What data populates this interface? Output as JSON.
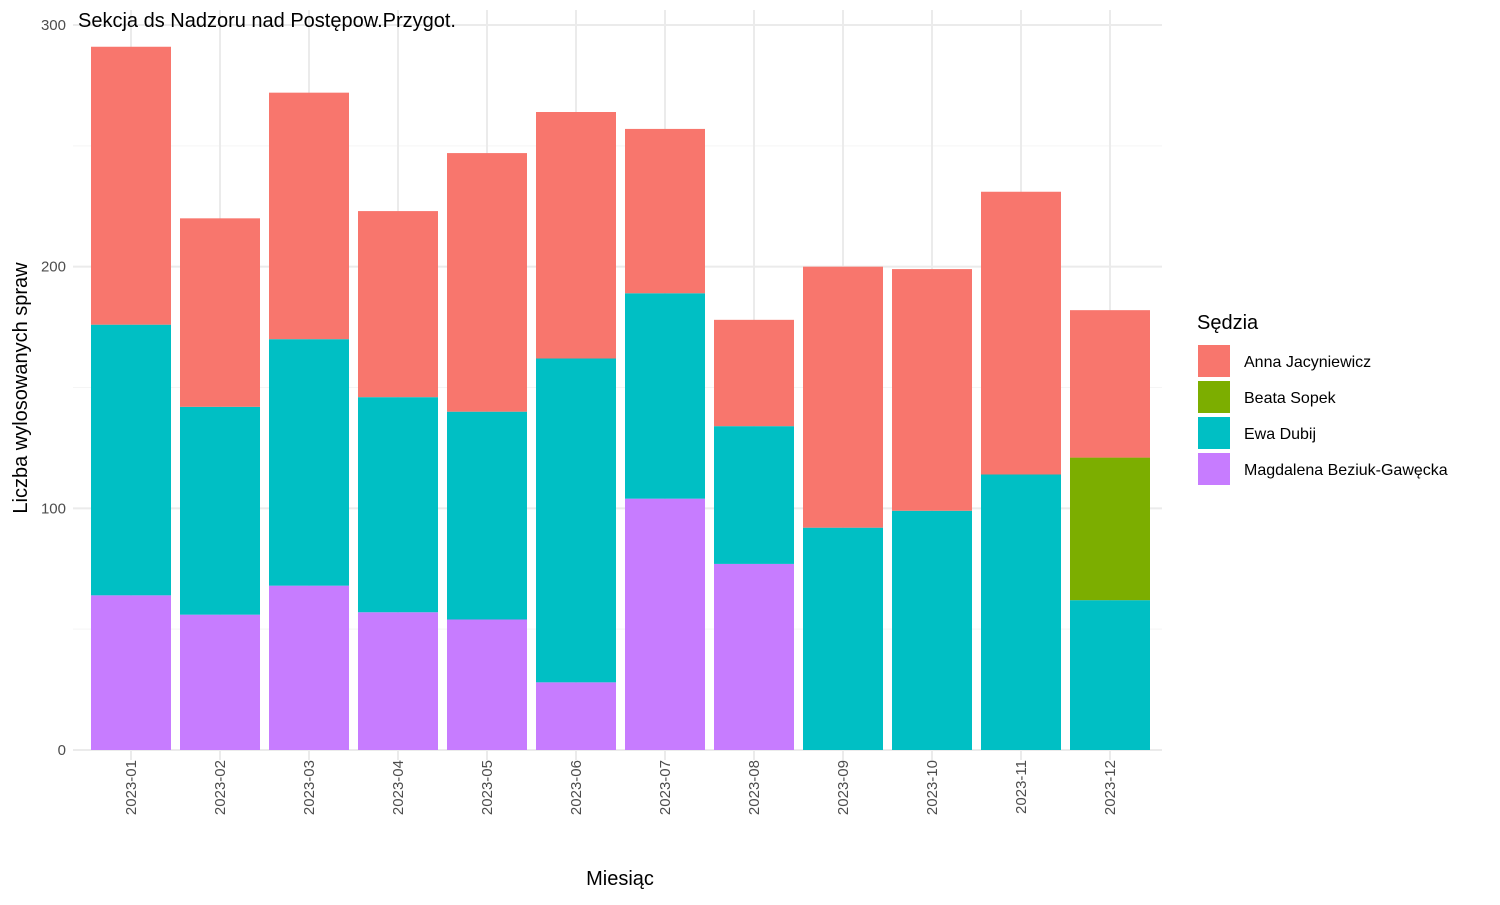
{
  "chart_data": {
    "type": "bar",
    "stacked": true,
    "title": "Sekcja ds Nadzoru nad Postępow.Przygot.",
    "xlabel": "Miesiąc",
    "ylabel": "Liczba wylosowanych spraw",
    "ylim": [
      0,
      300
    ],
    "yticks": [
      0,
      100,
      200,
      300
    ],
    "grid": true,
    "legend_position": "right",
    "legend_title": "Sędzia",
    "categories": [
      "2023-01",
      "2023-02",
      "2023-03",
      "2023-04",
      "2023-05",
      "2023-06",
      "2023-07",
      "2023-08",
      "2023-09",
      "2023-10",
      "2023-11",
      "2023-12"
    ],
    "stack_order_bottom_to_top": [
      "Magdalena Beziuk-Gawęcka",
      "Ewa Dubij",
      "Beata Sopek",
      "Anna Jacyniewicz"
    ],
    "series": [
      {
        "name": "Anna Jacyniewicz",
        "color": "#F8766D",
        "values": [
          115,
          78,
          102,
          77,
          107,
          102,
          68,
          44,
          108,
          100,
          117,
          61
        ]
      },
      {
        "name": "Beata Sopek",
        "color": "#7CAE00",
        "values": [
          0,
          0,
          0,
          0,
          0,
          0,
          0,
          0,
          0,
          0,
          0,
          59
        ]
      },
      {
        "name": "Ewa Dubij",
        "color": "#00BFC4",
        "values": [
          112,
          86,
          102,
          89,
          86,
          134,
          85,
          57,
          92,
          99,
          114,
          62
        ]
      },
      {
        "name": "Magdalena Beziuk-Gawęcka",
        "color": "#C77CFF",
        "values": [
          64,
          56,
          68,
          57,
          54,
          28,
          104,
          77,
          0,
          0,
          0,
          0
        ]
      }
    ]
  }
}
